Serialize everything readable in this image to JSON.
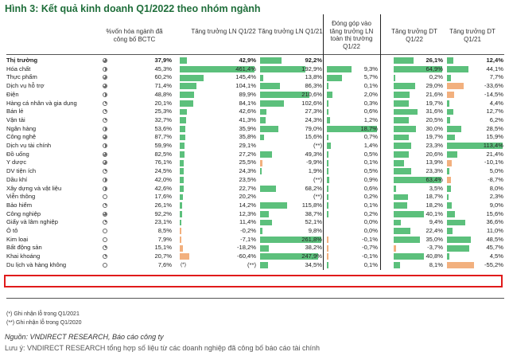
{
  "title": "Hình 3: Kết quả kinh doanh Q1/2022 theo nhóm ngành",
  "headers": {
    "weight": "%vốn hóa ngành đã công bố BCTC",
    "profit_yoy": "Tăng trưởng LN Q1/22",
    "profit_yoy_21": "Tăng trưởng LN Q1/21",
    "contribution": "Đóng góp vào tăng trưởng LN toàn thị trường Q1/22",
    "rev_22": "Tăng trưởng DT Q1/22",
    "rev_21": "Tăng trưởng DT Q1/21"
  },
  "rows": [
    {
      "name": "Thị trường",
      "icon": 3,
      "pct": "37,9%",
      "g22": "42,9%",
      "g22v": 42.9,
      "g21": "92,2%",
      "g21v": 92.2,
      "contrib": "",
      "cv": 0,
      "dt22": "26,1%",
      "d22v": 26.1,
      "dt21": "12,4%",
      "d21v": 12.4,
      "bold": true
    },
    {
      "name": "Hóa chất",
      "icon": 2,
      "pct": "45,3%",
      "g22": "461,4%",
      "g22v": 461.4,
      "g21": "192,9%",
      "g21v": 192.9,
      "contrib": "9,3%",
      "cv": 9.3,
      "dt22": "64,9%",
      "d22v": 64.9,
      "dt21": "44,1%",
      "d21v": 44.1
    },
    {
      "name": "Thực phẩm",
      "icon": 3,
      "pct": "60,2%",
      "g22": "145,4%",
      "g22v": 145.4,
      "g21": "13,8%",
      "g21v": 13.8,
      "contrib": "5,7%",
      "cv": 5.7,
      "dt22": "0,2%",
      "d22v": 0.2,
      "dt21": "7,7%",
      "d21v": 7.7
    },
    {
      "name": "Dịch vụ hỗ trợ",
      "icon": 3,
      "pct": "71,4%",
      "g22": "104,1%",
      "g22v": 104.1,
      "g21": "86,3%",
      "g21v": 86.3,
      "contrib": "0,1%",
      "cv": 0.1,
      "dt22": "29,0%",
      "d22v": 29.0,
      "dt21": "-33,6%",
      "d21v": -33.6
    },
    {
      "name": "Điện",
      "icon": 2,
      "pct": "48,8%",
      "g22": "89,9%",
      "g22v": 89.9,
      "g21": "210,6%",
      "g21v": 210.6,
      "contrib": "2,0%",
      "cv": 2.0,
      "dt22": "21,6%",
      "d22v": 21.6,
      "dt21": "-14,5%",
      "d21v": -14.5
    },
    {
      "name": "Hàng cá nhân và gia dụng",
      "icon": 1,
      "pct": "20,1%",
      "g22": "84,1%",
      "g22v": 84.1,
      "g21": "102,6%",
      "g21v": 102.6,
      "contrib": "0,3%",
      "cv": 0.3,
      "dt22": "19,7%",
      "d22v": 19.7,
      "dt21": "4,4%",
      "d21v": 4.4
    },
    {
      "name": "Bán lẻ",
      "icon": 1,
      "pct": "25,3%",
      "g22": "42,6%",
      "g22v": 42.6,
      "g21": "27,3%",
      "g21v": 27.3,
      "contrib": "0,6%",
      "cv": 0.6,
      "dt22": "31,6%",
      "d22v": 31.6,
      "dt21": "12,7%",
      "d21v": 12.7
    },
    {
      "name": "Vận tải",
      "icon": 1,
      "pct": "32,7%",
      "g22": "41,3%",
      "g22v": 41.3,
      "g21": "24,3%",
      "g21v": 24.3,
      "contrib": "1,2%",
      "cv": 1.2,
      "dt22": "20,5%",
      "d22v": 20.5,
      "dt21": "6,2%",
      "d21v": 6.2
    },
    {
      "name": "Ngân hàng",
      "icon": 2,
      "pct": "53,6%",
      "g22": "35,9%",
      "g22v": 35.9,
      "g21": "79,0%",
      "g21v": 79.0,
      "contrib": "18,7%",
      "cv": 18.7,
      "dt22": "30,0%",
      "d22v": 30.0,
      "dt21": "28,5%",
      "d21v": 28.5
    },
    {
      "name": "Công nghệ",
      "icon": 3,
      "pct": "87,7%",
      "g22": "35,8%",
      "g22v": 35.8,
      "g21": "15,6%",
      "g21v": 15.6,
      "contrib": "0,7%",
      "cv": 0.7,
      "dt22": "19,7%",
      "d22v": 19.7,
      "dt21": "15,9%",
      "d21v": 15.9
    },
    {
      "name": "Dịch vụ tài chính",
      "icon": 2,
      "pct": "59,9%",
      "g22": "29,1%",
      "g22v": 29.1,
      "g21": "(**)",
      "g21v": 0,
      "contrib": "1,4%",
      "cv": 1.4,
      "dt22": "23,3%",
      "d22v": 23.3,
      "dt21": "113,4%",
      "d21v": 113.4
    },
    {
      "name": "Đồ uống",
      "icon": 3,
      "pct": "82,5%",
      "g22": "27,2%",
      "g22v": 27.2,
      "g21": "49,3%",
      "g21v": 49.3,
      "contrib": "0,5%",
      "cv": 0.5,
      "dt22": "20,6%",
      "d22v": 20.6,
      "dt21": "21,4%",
      "d21v": 21.4
    },
    {
      "name": "Y dược",
      "icon": 3,
      "pct": "76,1%",
      "g22": "25,5%",
      "g22v": 25.5,
      "g21": "-9,9%",
      "g21v": -9.9,
      "contrib": "0,1%",
      "cv": 0.1,
      "dt22": "13,9%",
      "d22v": 13.9,
      "dt21": "-10,1%",
      "d21v": -10.1
    },
    {
      "name": "DV tiện ích",
      "icon": 1,
      "pct": "24,5%",
      "g22": "24,3%",
      "g22v": 24.3,
      "g21": "1,9%",
      "g21v": 1.9,
      "contrib": "0,5%",
      "cv": 0.5,
      "dt22": "23,3%",
      "d22v": 23.3,
      "dt21": "5,0%",
      "d21v": 5.0
    },
    {
      "name": "Dầu khí",
      "icon": 2,
      "pct": "42,0%",
      "g22": "23,5%",
      "g22v": 23.5,
      "g21": "(**)",
      "g21v": 0,
      "contrib": "0,9%",
      "cv": 0.9,
      "dt22": "63,4%",
      "d22v": 63.4,
      "dt21": "-8,7%",
      "d21v": -8.7
    },
    {
      "name": "Xây dựng và vật liệu",
      "icon": 2,
      "pct": "42,6%",
      "g22": "22,7%",
      "g22v": 22.7,
      "g21": "68,2%",
      "g21v": 68.2,
      "contrib": "0,6%",
      "cv": 0.6,
      "dt22": "3,5%",
      "d22v": 3.5,
      "dt21": "8,0%",
      "d21v": 8.0
    },
    {
      "name": "Viễn thông",
      "icon": 0,
      "pct": "17,6%",
      "g22": "20,2%",
      "g22v": 20.2,
      "g21": "(**)",
      "g21v": 0,
      "contrib": "0,2%",
      "cv": 0.2,
      "dt22": "18,7%",
      "d22v": 18.7,
      "dt21": "2,3%",
      "d21v": 2.3
    },
    {
      "name": "Bảo hiểm",
      "icon": 1,
      "pct": "26,1%",
      "g22": "14,2%",
      "g22v": 14.2,
      "g21": "115,8%",
      "g21v": 115.8,
      "contrib": "0,1%",
      "cv": 0.1,
      "dt22": "18,2%",
      "d22v": 18.2,
      "dt21": "9,0%",
      "d21v": 9.0
    },
    {
      "name": "Công nghiệp",
      "icon": 3,
      "pct": "92,2%",
      "g22": "12,3%",
      "g22v": 12.3,
      "g21": "38,7%",
      "g21v": 38.7,
      "contrib": "0,2%",
      "cv": 0.2,
      "dt22": "40,1%",
      "d22v": 40.1,
      "dt21": "15,6%",
      "d21v": 15.6
    },
    {
      "name": "Giấy và lâm nghiệp",
      "icon": 1,
      "pct": "23,1%",
      "g22": "11,4%",
      "g22v": 11.4,
      "g21": "52,1%",
      "g21v": 52.1,
      "contrib": "0,0%",
      "cv": 0,
      "dt22": "9,4%",
      "d22v": 9.4,
      "dt21": "36,6%",
      "d21v": 36.6
    },
    {
      "name": "Ô tô",
      "icon": 0,
      "pct": "8,5%",
      "g22": "-0,2%",
      "g22v": -0.2,
      "g21": "9,8%",
      "g21v": 9.8,
      "contrib": "0,0%",
      "cv": 0,
      "dt22": "22,4%",
      "d22v": 22.4,
      "dt21": "11,0%",
      "d21v": 11.0
    },
    {
      "name": "Kim loại",
      "icon": 0,
      "pct": "7,9%",
      "g22": "-7,1%",
      "g22v": -7.1,
      "g21": "261,8%",
      "g21v": 261.8,
      "contrib": "-0,1%",
      "cv": -0.1,
      "dt22": "35,0%",
      "d22v": 35.0,
      "dt21": "48,5%",
      "d21v": 48.5
    },
    {
      "name": "Bất động sản",
      "icon": 1,
      "pct": "15,1%",
      "g22": "-18,2%",
      "g22v": -18.2,
      "g21": "38,2%",
      "g21v": 38.2,
      "contrib": "-0,7%",
      "cv": -0.7,
      "dt22": "-3,7%",
      "d22v": -3.7,
      "dt21": "45,7%",
      "d21v": 45.7
    },
    {
      "name": "Khai khoáng",
      "icon": 1,
      "pct": "20,7%",
      "g22": "-60,4%",
      "g22v": -60.4,
      "g21": "247,9%",
      "g21v": 247.9,
      "contrib": "-0,1%",
      "cv": -0.1,
      "dt22": "40,8%",
      "d22v": 40.8,
      "dt21": "4,5%",
      "d21v": 4.5
    },
    {
      "name": "Du lịch và hàng không",
      "icon": 0,
      "pct": "7,6%",
      "g22": "(**)",
      "g22v": 0,
      "g21": "34,5%",
      "g21v": 34.5,
      "contrib": "0,1%",
      "cv": 0.1,
      "dt22": "8,1%",
      "d22v": 8.1,
      "dt21": "-55,2%",
      "d21v": -55.2,
      "m22": "(*)"
    }
  ],
  "footnotes": [
    "(*) Ghi nhận lỗ trong Q1/2021",
    "(**) Ghi nhận lỗ trong Q1/2020"
  ],
  "source": "Nguồn: VNDIRECT RESEARCH, Báo cáo công ty",
  "cut_line": "Lưu ý: VNDIRECT RESEARCH tổng hợp số liệu từ các doanh nghiệp đã công bố báo cáo tài chính",
  "colors": {
    "positive": "#5cc07c",
    "negative": "#f2b07e",
    "highlight": "#e01b1b",
    "title": "#1f6e3a"
  }
}
